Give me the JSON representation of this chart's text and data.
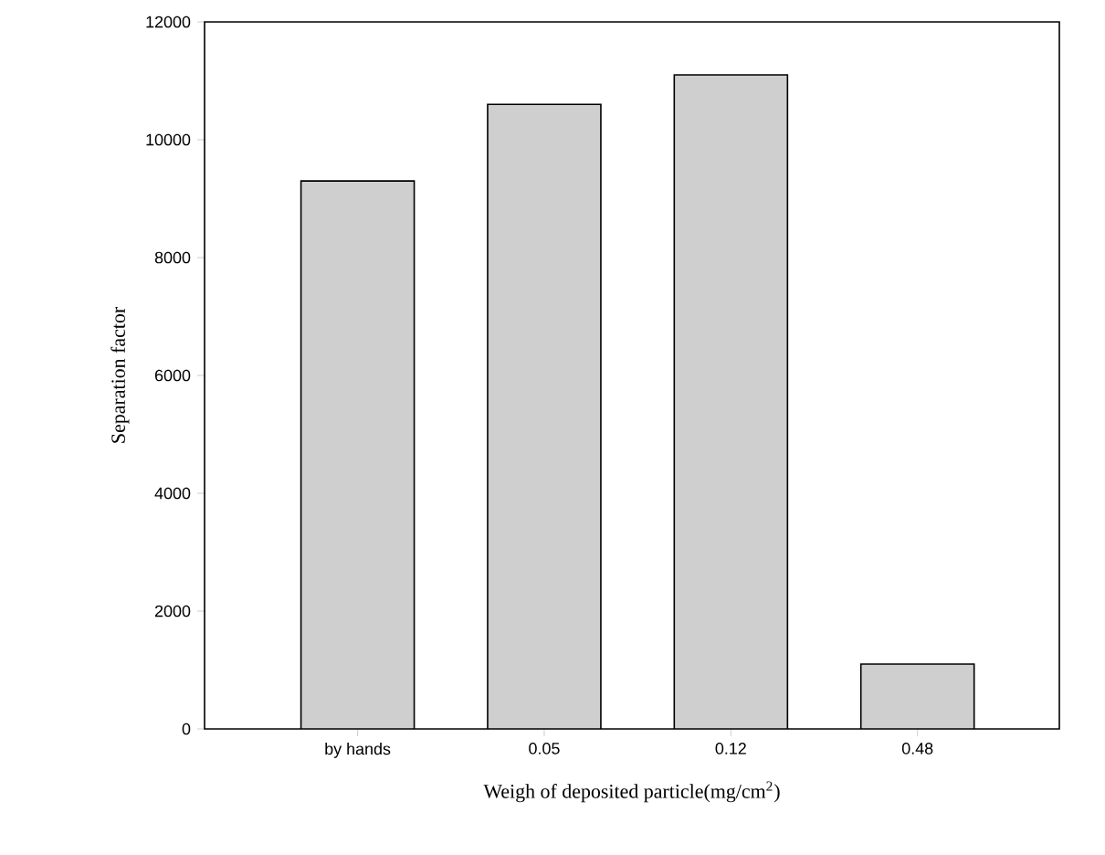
{
  "chart_data": {
    "type": "bar",
    "xlabel": "Weigh of deposited particle(mg/cm$^{2}$)",
    "ylabel": "Separation factor",
    "categories": [
      "by hands",
      "0.05",
      "0.12",
      "0.48"
    ],
    "values": [
      9300,
      10600,
      11100,
      1100
    ],
    "color": "#cfcfcf",
    "ylim": [
      0,
      12000
    ],
    "yticks": [
      0,
      2000,
      4000,
      6000,
      8000,
      10000,
      12000
    ]
  }
}
